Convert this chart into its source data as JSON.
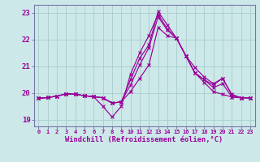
{
  "xlabel": "Windchill (Refroidissement éolien,°C)",
  "background_color": "#cce8e8",
  "line_color": "#990099",
  "grid_color": "#aacccc",
  "spine_color": "#7777aa",
  "xlim": [
    -0.5,
    23.5
  ],
  "ylim": [
    18.75,
    23.3
  ],
  "xticks": [
    0,
    1,
    2,
    3,
    4,
    5,
    6,
    7,
    8,
    9,
    10,
    11,
    12,
    13,
    14,
    15,
    16,
    17,
    18,
    19,
    20,
    21,
    22,
    23
  ],
  "yticks": [
    19,
    20,
    21,
    22,
    23
  ],
  "series": {
    "line1": [
      19.8,
      19.83,
      19.88,
      19.97,
      19.95,
      19.9,
      19.86,
      19.82,
      19.62,
      19.67,
      20.05,
      20.55,
      21.05,
      22.45,
      22.15,
      22.05,
      21.4,
      20.75,
      20.4,
      20.05,
      19.95,
      19.85,
      19.82,
      19.82
    ],
    "line2": [
      19.8,
      19.83,
      19.88,
      19.97,
      19.95,
      19.9,
      19.86,
      19.82,
      19.62,
      19.67,
      20.3,
      21.05,
      21.7,
      22.85,
      22.35,
      22.05,
      21.4,
      20.75,
      20.5,
      20.2,
      20.35,
      19.85,
      19.82,
      19.82
    ],
    "line3": [
      19.8,
      19.83,
      19.88,
      19.97,
      19.95,
      19.9,
      19.86,
      19.5,
      19.1,
      19.5,
      20.7,
      21.5,
      22.15,
      22.95,
      22.4,
      22.05,
      21.4,
      20.95,
      20.6,
      20.35,
      20.55,
      19.95,
      19.82,
      19.82
    ],
    "line4": [
      19.8,
      19.83,
      19.88,
      19.97,
      19.95,
      19.9,
      19.86,
      19.82,
      19.62,
      19.67,
      20.5,
      21.3,
      21.8,
      23.05,
      22.55,
      22.05,
      21.4,
      20.75,
      20.5,
      20.3,
      20.55,
      19.92,
      19.82,
      19.82
    ]
  }
}
